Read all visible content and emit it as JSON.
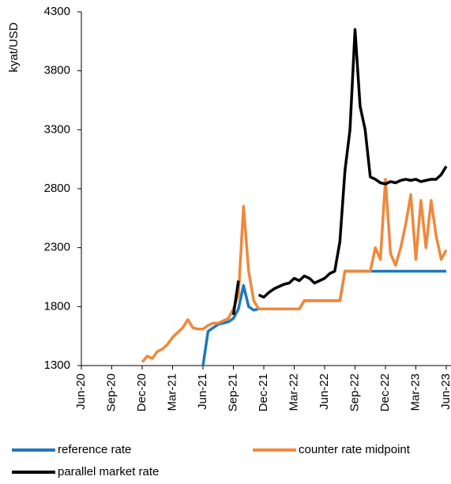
{
  "chart_data": {
    "type": "line",
    "y_label": "kyat/USD",
    "categories": [
      "Jun-20",
      null,
      null,
      null,
      null,
      null,
      "Sep-20",
      null,
      null,
      null,
      null,
      null,
      "Dec-20",
      null,
      null,
      null,
      null,
      null,
      "Mar-21",
      null,
      null,
      null,
      null,
      null,
      "Jun-21",
      null,
      null,
      null,
      null,
      null,
      "Sep-21",
      null,
      null,
      null,
      null,
      null,
      "Dec-21",
      null,
      null,
      null,
      null,
      null,
      "Mar-22",
      null,
      null,
      null,
      null,
      null,
      "Jun-22",
      null,
      null,
      null,
      null,
      null,
      "Sep-22",
      null,
      null,
      null,
      null,
      null,
      "Dec-22",
      null,
      null,
      null,
      null,
      null,
      "Mar-23",
      null,
      null,
      null,
      null,
      null,
      "Jun-23"
    ],
    "series": [
      {
        "name": "reference rate",
        "color": "#1f77c0",
        "values": [
          null,
          null,
          null,
          null,
          null,
          null,
          null,
          null,
          null,
          null,
          null,
          null,
          null,
          null,
          null,
          null,
          null,
          null,
          null,
          null,
          null,
          null,
          null,
          null,
          1300,
          1590,
          1620,
          1650,
          1660,
          1670,
          1700,
          1780,
          1980,
          1800,
          1770,
          1780,
          1780,
          1780,
          1780,
          1780,
          1780,
          1780,
          1780,
          1780,
          1850,
          1850,
          1850,
          1850,
          1850,
          1850,
          1850,
          1850,
          2100,
          2100,
          2100,
          2100,
          2100,
          2100,
          2100,
          2100,
          2100,
          2100,
          2100,
          2100,
          2100,
          2100,
          2100,
          2100,
          2100,
          2100,
          2100,
          2100,
          2100
        ]
      },
      {
        "name": "counter rate midpoint",
        "color": "#f0883a",
        "values": [
          null,
          null,
          null,
          null,
          null,
          null,
          null,
          null,
          null,
          null,
          null,
          null,
          1330,
          1380,
          1360,
          1420,
          1440,
          1480,
          1540,
          1580,
          1620,
          1690,
          1620,
          1610,
          1610,
          1640,
          1660,
          1660,
          1680,
          1700,
          1780,
          1900,
          2650,
          2100,
          1850,
          1780,
          1780,
          1780,
          1780,
          1780,
          1780,
          1780,
          1780,
          1780,
          1850,
          1850,
          1850,
          1850,
          1850,
          1850,
          1850,
          1850,
          2100,
          2100,
          2100,
          2100,
          2100,
          2100,
          2300,
          2200,
          2880,
          2250,
          2150,
          2300,
          2500,
          2750,
          2200,
          2700,
          2300,
          2700,
          2400,
          2200,
          2280
        ]
      },
      {
        "name": "parallel market rate",
        "color": "#000000",
        "values": [
          null,
          null,
          null,
          null,
          null,
          null,
          null,
          null,
          null,
          null,
          null,
          null,
          null,
          null,
          null,
          null,
          null,
          null,
          null,
          null,
          null,
          null,
          null,
          null,
          null,
          null,
          null,
          null,
          null,
          null,
          1730,
          2020,
          null,
          null,
          null,
          1900,
          1880,
          1920,
          1950,
          1970,
          1990,
          2000,
          2040,
          2020,
          2060,
          2040,
          2000,
          2020,
          2040,
          2080,
          2100,
          2350,
          2950,
          3300,
          4150,
          3500,
          3300,
          2900,
          2880,
          2850,
          2840,
          2860,
          2850,
          2870,
          2880,
          2870,
          2880,
          2860,
          2870,
          2880,
          2880,
          2920,
          2990
        ]
      }
    ],
    "ylim": [
      1300,
      4300
    ],
    "yticks": [
      1300,
      1800,
      2300,
      2800,
      3300,
      3800,
      4300
    ]
  }
}
